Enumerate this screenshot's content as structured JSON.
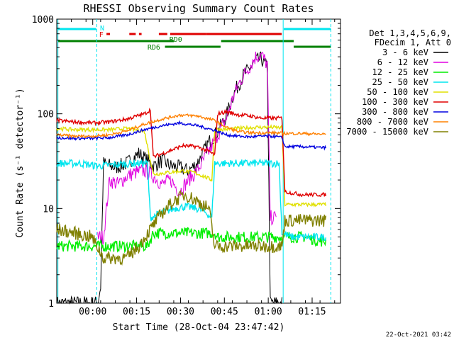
{
  "chart_data": {
    "type": "line",
    "title": "RHESSI Observing Summary Count Rates",
    "xlabel": "Start Time (28-Oct-04 23:47:42)",
    "ylabel": "Count Rate (s⁻¹ detector⁻¹)",
    "yscale": "log",
    "ylim": [
      1,
      1000
    ],
    "xlim_minutes": [
      0,
      97
    ],
    "x_tick_labels": [
      "00:00",
      "00:15",
      "00:30",
      "00:45",
      "01:00",
      "01:15"
    ],
    "x_tick_minutes": [
      12.3,
      27.3,
      42.3,
      57.3,
      72.3,
      87.3
    ],
    "y_tick_labels": [
      "1",
      "10",
      "100",
      "1000"
    ],
    "y_tick_values": [
      1,
      10,
      100,
      1000
    ],
    "legend_header": [
      "Det 1,3,4,5,6,9,",
      "FDecim 1, Att 0"
    ],
    "legend_position": "right",
    "timestamp": "22-Oct-2021 03:42",
    "flag_labels": {
      "night": "N",
      "flare": "F",
      "rd0": "RD0",
      "rd6": "RD6"
    },
    "flag_colors": {
      "night": "#00e5ee",
      "flare": "#e00000",
      "rd": "#008000"
    },
    "series": [
      {
        "name": "3 - 6 keV",
        "color": "#000000",
        "points": [
          [
            0,
            1
          ],
          [
            14,
            1
          ],
          [
            15,
            1.5
          ],
          [
            16,
            30
          ],
          [
            20,
            27
          ],
          [
            24,
            30
          ],
          [
            28,
            38
          ],
          [
            30,
            34
          ],
          [
            33,
            28
          ],
          [
            36,
            32
          ],
          [
            39,
            28
          ],
          [
            42,
            27
          ],
          [
            45,
            25
          ],
          [
            48,
            30
          ],
          [
            52,
            50
          ],
          [
            55,
            65
          ],
          [
            58,
            95
          ],
          [
            60,
            150
          ],
          [
            62,
            200
          ],
          [
            64,
            260
          ],
          [
            66,
            300
          ],
          [
            68,
            360
          ],
          [
            70,
            380
          ],
          [
            72,
            300
          ],
          [
            73,
            1
          ],
          [
            76,
            1
          ],
          [
            77,
            1
          ]
        ]
      },
      {
        "name": "6 - 12 keV",
        "color": "#e000e0",
        "points": [
          [
            14,
            5
          ],
          [
            16,
            5
          ],
          [
            18,
            20
          ],
          [
            21,
            18
          ],
          [
            24,
            22
          ],
          [
            27,
            24
          ],
          [
            30,
            25
          ],
          [
            33,
            22
          ],
          [
            36,
            18
          ],
          [
            39,
            20
          ],
          [
            42,
            15
          ],
          [
            45,
            20
          ],
          [
            48,
            25
          ],
          [
            52,
            40
          ],
          [
            55,
            60
          ],
          [
            58,
            90
          ],
          [
            60,
            140
          ],
          [
            62,
            200
          ],
          [
            64,
            260
          ],
          [
            66,
            320
          ],
          [
            68,
            400
          ],
          [
            70,
            420
          ],
          [
            72,
            330
          ],
          [
            73,
            8
          ],
          [
            75,
            8
          ]
        ]
      },
      {
        "name": "12 - 25 keV",
        "color": "#00ee00",
        "points": [
          [
            0,
            4
          ],
          [
            8,
            4
          ],
          [
            14,
            4
          ],
          [
            22,
            4
          ],
          [
            31,
            4
          ],
          [
            33,
            5.5
          ],
          [
            38,
            5.5
          ],
          [
            44,
            5.5
          ],
          [
            50,
            5.5
          ],
          [
            54,
            5.5
          ],
          [
            55,
            5
          ],
          [
            60,
            5
          ],
          [
            65,
            5
          ],
          [
            70,
            5
          ],
          [
            73,
            5
          ],
          [
            78,
            5
          ],
          [
            85,
            5
          ],
          [
            90,
            4.5
          ],
          [
            92,
            4.5
          ]
        ]
      },
      {
        "name": "25 - 50 keV",
        "color": "#00e5ee",
        "points": [
          [
            0,
            30
          ],
          [
            8,
            30
          ],
          [
            14,
            28
          ],
          [
            20,
            29
          ],
          [
            26,
            30
          ],
          [
            31,
            30
          ],
          [
            32,
            8
          ],
          [
            36,
            9
          ],
          [
            40,
            10
          ],
          [
            44,
            10.5
          ],
          [
            48,
            10
          ],
          [
            51,
            9
          ],
          [
            53,
            8
          ],
          [
            54,
            30
          ],
          [
            60,
            30
          ],
          [
            66,
            30
          ],
          [
            72,
            30
          ],
          [
            76,
            30
          ],
          [
            77,
            5.5
          ],
          [
            80,
            5
          ],
          [
            85,
            5
          ],
          [
            90,
            5
          ],
          [
            92,
            5
          ]
        ]
      },
      {
        "name": "50 - 100 keV",
        "color": "#e0e000",
        "points": [
          [
            0,
            70
          ],
          [
            6,
            68
          ],
          [
            12,
            68
          ],
          [
            18,
            68
          ],
          [
            24,
            70
          ],
          [
            30,
            65
          ],
          [
            33,
            23
          ],
          [
            38,
            24
          ],
          [
            43,
            25
          ],
          [
            47,
            24
          ],
          [
            50,
            22
          ],
          [
            53,
            20
          ],
          [
            54,
            68
          ],
          [
            62,
            70
          ],
          [
            68,
            72
          ],
          [
            74,
            72
          ],
          [
            77,
            71
          ],
          [
            78,
            11
          ],
          [
            84,
            11
          ],
          [
            90,
            11
          ],
          [
            92,
            11
          ]
        ]
      },
      {
        "name": "100 - 300 keV",
        "color": "#e00000",
        "points": [
          [
            0,
            85
          ],
          [
            6,
            82
          ],
          [
            12,
            80
          ],
          [
            18,
            82
          ],
          [
            24,
            88
          ],
          [
            30,
            100
          ],
          [
            32,
            110
          ],
          [
            33,
            35
          ],
          [
            38,
            40
          ],
          [
            43,
            46
          ],
          [
            48,
            45
          ],
          [
            52,
            40
          ],
          [
            54,
            37
          ],
          [
            55,
            100
          ],
          [
            58,
            105
          ],
          [
            62,
            98
          ],
          [
            66,
            95
          ],
          [
            70,
            90
          ],
          [
            74,
            90
          ],
          [
            77,
            90
          ],
          [
            78,
            15
          ],
          [
            84,
            14
          ],
          [
            90,
            14
          ],
          [
            92,
            14
          ]
        ]
      },
      {
        "name": "300 - 800 keV",
        "color": "#0000e0",
        "points": [
          [
            0,
            56
          ],
          [
            6,
            55
          ],
          [
            12,
            55
          ],
          [
            18,
            56
          ],
          [
            24,
            60
          ],
          [
            30,
            68
          ],
          [
            36,
            75
          ],
          [
            42,
            80
          ],
          [
            48,
            75
          ],
          [
            54,
            67
          ],
          [
            58,
            60
          ],
          [
            62,
            58
          ],
          [
            66,
            57
          ],
          [
            70,
            58
          ],
          [
            74,
            58
          ],
          [
            77,
            56
          ],
          [
            78,
            45
          ],
          [
            84,
            45
          ],
          [
            90,
            44
          ],
          [
            92,
            44
          ]
        ]
      },
      {
        "name": "800 - 7000 keV",
        "color": "#ff8000",
        "points": [
          [
            0,
            60
          ],
          [
            6,
            58
          ],
          [
            12,
            58
          ],
          [
            18,
            60
          ],
          [
            24,
            66
          ],
          [
            30,
            78
          ],
          [
            36,
            88
          ],
          [
            42,
            97
          ],
          [
            48,
            95
          ],
          [
            54,
            85
          ],
          [
            58,
            72
          ],
          [
            62,
            65
          ],
          [
            66,
            63
          ],
          [
            70,
            63
          ],
          [
            74,
            63
          ],
          [
            78,
            62
          ],
          [
            84,
            62
          ],
          [
            90,
            61
          ],
          [
            92,
            61
          ]
        ]
      },
      {
        "name": "7000 - 15000 keV",
        "color": "#808000",
        "points": [
          [
            0,
            6
          ],
          [
            6,
            5.5
          ],
          [
            12,
            5
          ],
          [
            16,
            3
          ],
          [
            20,
            3
          ],
          [
            24,
            3
          ],
          [
            28,
            4
          ],
          [
            32,
            6
          ],
          [
            36,
            9
          ],
          [
            40,
            12
          ],
          [
            44,
            14
          ],
          [
            48,
            12
          ],
          [
            52,
            10
          ],
          [
            54,
            4
          ],
          [
            58,
            4
          ],
          [
            62,
            4
          ],
          [
            66,
            4
          ],
          [
            70,
            4
          ],
          [
            74,
            4
          ],
          [
            77,
            4
          ],
          [
            78,
            7.5
          ],
          [
            84,
            7.5
          ],
          [
            90,
            7.5
          ],
          [
            92,
            7.5
          ]
        ]
      }
    ]
  }
}
